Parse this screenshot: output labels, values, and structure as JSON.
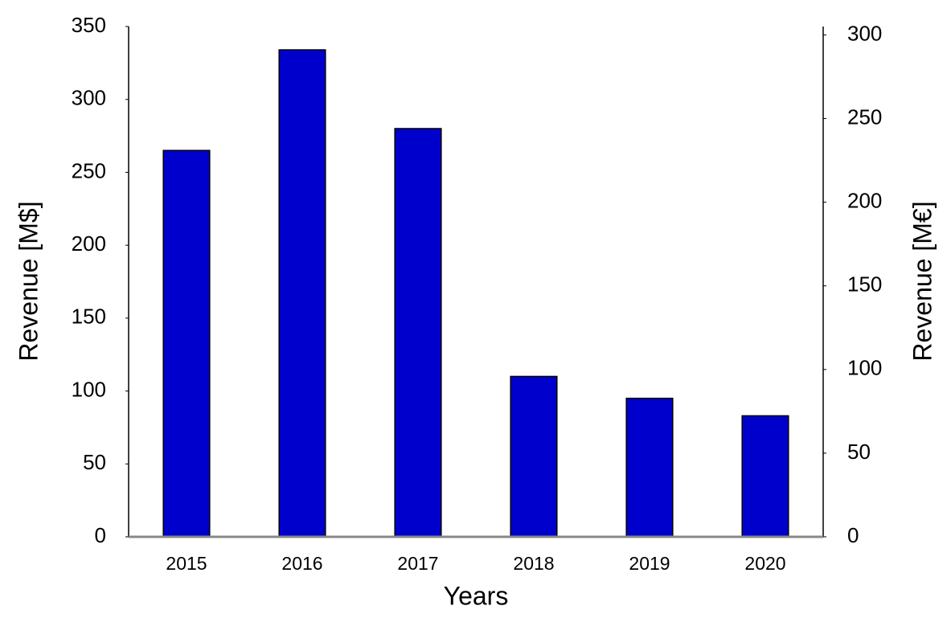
{
  "chart_data": {
    "type": "bar",
    "x_label": "Years",
    "y_label": "Revenue [M$]",
    "y2_label": "Revenue [M€]",
    "categories": [
      "2015",
      "2016",
      "2017",
      "2018",
      "2019",
      "2020"
    ],
    "values": [
      265,
      334,
      280,
      110,
      95,
      83
    ],
    "color": "#0000cc",
    "ylim": [
      0,
      350
    ],
    "yticks": [
      0,
      50,
      100,
      150,
      200,
      250,
      300,
      350
    ],
    "y2lim": [
      0,
      305
    ],
    "y2ticks": [
      0,
      50,
      100,
      150,
      200,
      250,
      300
    ]
  }
}
